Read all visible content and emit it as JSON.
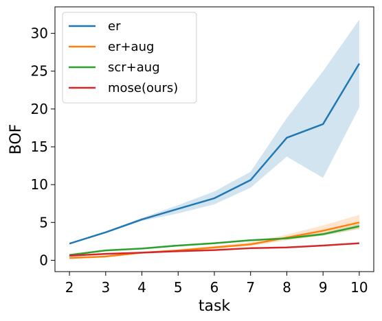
{
  "chart_data": {
    "type": "line",
    "xlabel": "task",
    "ylabel": "BOF",
    "x": [
      2,
      3,
      4,
      5,
      6,
      7,
      8,
      9,
      10
    ],
    "xlim": [
      1.6,
      10.4
    ],
    "ylim": [
      -1.5,
      33.5
    ],
    "xticks": [
      2,
      3,
      4,
      5,
      6,
      7,
      8,
      9,
      10
    ],
    "yticks": [
      0,
      5,
      10,
      15,
      20,
      25,
      30
    ],
    "grid": false,
    "legend_position": "top-left",
    "series": [
      {
        "name": "er",
        "color": "#1f77b4",
        "values": [
          2.2,
          3.7,
          5.4,
          6.8,
          8.2,
          10.6,
          16.2,
          18.0,
          26.0
        ],
        "band_lower": [
          2.1,
          3.6,
          5.2,
          6.2,
          7.4,
          9.6,
          13.7,
          10.9,
          20.2
        ],
        "band_upper": [
          2.3,
          3.8,
          5.6,
          7.3,
          9.1,
          11.7,
          18.8,
          25.0,
          31.8
        ]
      },
      {
        "name": "er+aug",
        "color": "#ff7f0e",
        "values": [
          0.3,
          0.5,
          1.0,
          1.3,
          1.7,
          2.1,
          3.0,
          3.9,
          5.0
        ],
        "band_lower": [
          0.2,
          0.4,
          0.9,
          1.2,
          1.5,
          1.9,
          2.6,
          3.3,
          4.1
        ],
        "band_upper": [
          0.4,
          0.6,
          1.1,
          1.4,
          1.9,
          2.4,
          3.4,
          4.6,
          6.0
        ]
      },
      {
        "name": "scr+aug",
        "color": "#2ca02c",
        "values": [
          0.7,
          1.3,
          1.55,
          1.95,
          2.25,
          2.65,
          2.9,
          3.45,
          4.5
        ],
        "band_lower": [
          0.6,
          1.2,
          1.45,
          1.85,
          2.15,
          2.55,
          2.75,
          3.25,
          4.2
        ],
        "band_upper": [
          0.8,
          1.4,
          1.65,
          2.05,
          2.35,
          2.75,
          3.05,
          3.65,
          4.8
        ]
      },
      {
        "name": "mose(ours)",
        "color": "#d62728",
        "values": [
          0.6,
          0.85,
          1.0,
          1.2,
          1.35,
          1.6,
          1.7,
          1.95,
          2.25
        ],
        "band_lower": [
          0.55,
          0.8,
          0.95,
          1.15,
          1.3,
          1.55,
          1.65,
          1.9,
          2.2
        ],
        "band_upper": [
          0.65,
          0.9,
          1.05,
          1.25,
          1.4,
          1.65,
          1.75,
          2.0,
          2.3
        ]
      }
    ]
  }
}
